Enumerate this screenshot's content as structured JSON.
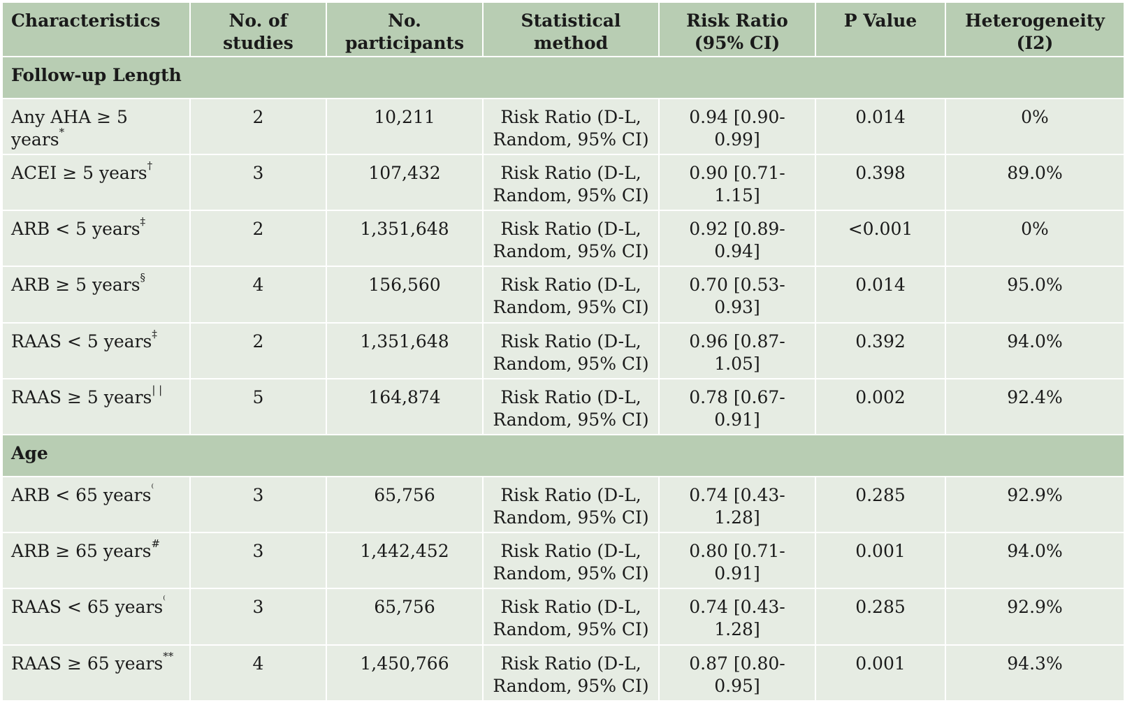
{
  "headers": [
    "Characteristics",
    "No. of studies",
    "No. participants",
    "Statistical method",
    "Risk Ratio (95% CI)",
    "P Value",
    "Heterogeneity (I2)"
  ],
  "sections": [
    {
      "title": "Follow-up Length",
      "rows": [
        {
          "label": "Any AHA ≥ 5 years",
          "mark": "*",
          "studies": "2",
          "participants": "10,211",
          "method": "Risk Ratio (D-L, Random, 95% CI)",
          "rr": "0.94 [0.90-0.99]",
          "p": "0.014",
          "i2": "0%"
        },
        {
          "label": "ACEI ≥ 5 years",
          "mark": "†",
          "studies": "3",
          "participants": "107,432",
          "method": "Risk Ratio (D-L, Random, 95% CI)",
          "rr": "0.90 [0.71-1.15]",
          "p": "0.398",
          "i2": "89.0%"
        },
        {
          "label": "ARB < 5 years",
          "mark": "‡",
          "studies": "2",
          "participants": "1,351,648",
          "method": "Risk Ratio (D-L, Random, 95% CI)",
          "rr": "0.92 [0.89-0.94]",
          "p": "<0.001",
          "i2": "0%"
        },
        {
          "label": "ARB ≥ 5 years",
          "mark": "§",
          "studies": "4",
          "participants": "156,560",
          "method": "Risk Ratio (D-L, Random, 95% CI)",
          "rr": "0.70 [0.53-0.93]",
          "p": "0.014",
          "i2": "95.0%"
        },
        {
          "label": "RAAS < 5 years",
          "mark": "‡",
          "studies": "2",
          "participants": "1,351,648",
          "method": "Risk Ratio (D-L, Random, 95% CI)",
          "rr": "0.96 [0.87-1.05]",
          "p": "0.392",
          "i2": "94.0%"
        },
        {
          "label": "RAAS ≥ 5 years",
          "mark": "| |",
          "studies": "5",
          "participants": "164,874",
          "method": "Risk Ratio (D-L, Random, 95% CI)",
          "rr": "0.78 [0.67-0.91]",
          "p": "0.002",
          "i2": "92.4%"
        }
      ]
    },
    {
      "title": "Age",
      "rows": [
        {
          "label": "ARB < 65 years",
          "mark": "⁽",
          "studies": "3",
          "participants": "65,756",
          "method": "Risk Ratio (D-L, Random, 95% CI)",
          "rr": "0.74 [0.43-1.28]",
          "p": "0.285",
          "i2": "92.9%"
        },
        {
          "label": "ARB ≥ 65 years",
          "mark": "#",
          "studies": "3",
          "participants": "1,442,452",
          "method": "Risk Ratio (D-L, Random, 95% CI)",
          "rr": "0.80 [0.71-0.91]",
          "p": "0.001",
          "i2": "94.0%"
        },
        {
          "label": "RAAS < 65 years",
          "mark": "⁽",
          "studies": "3",
          "participants": "65,756",
          "method": "Risk Ratio (D-L, Random, 95% CI)",
          "rr": "0.74 [0.43-1.28]",
          "p": "0.285",
          "i2": "92.9%"
        },
        {
          "label": "RAAS ≥ 65 years",
          "mark": "**",
          "studies": "4",
          "participants": "1,450,766",
          "method": "Risk Ratio (D-L, Random, 95% CI)",
          "rr": "0.87 [0.80-0.95]",
          "p": "0.001",
          "i2": "94.3%"
        }
      ]
    }
  ]
}
